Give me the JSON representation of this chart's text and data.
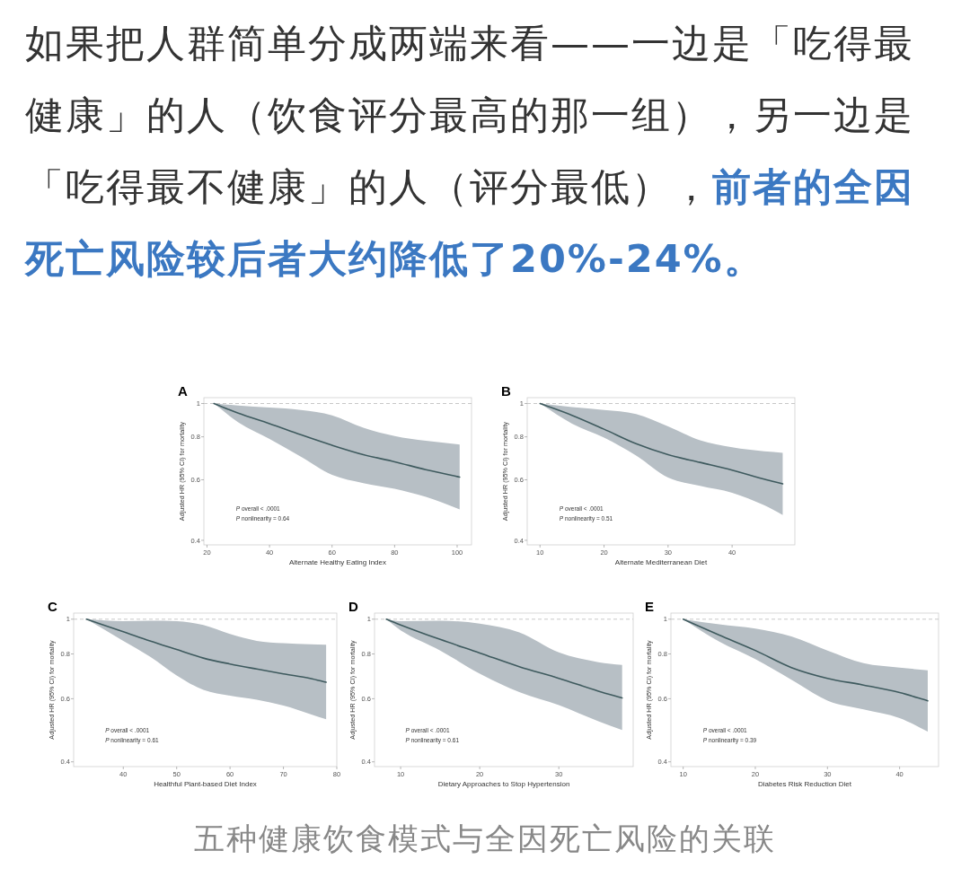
{
  "chart_data": [
    {
      "type": "other",
      "annotations": [
        "如果把人群简单分成两端来看——一边是「吃得最健康」的人（饮食评分最高的那一组），另一边是「吃得最不健康」的人（评分最低），",
        "前者的全因死亡风险较后者大约降低了20%-24%。"
      ]
    },
    {
      "type": "line",
      "title": "A",
      "xlabel": "Alternate Healthy Eating Index",
      "ylabel": "Adjusted HR (95% CI) for mortality",
      "log": "y",
      "xlim": [
        19,
        104.6
      ],
      "xticks": [
        20,
        40,
        60,
        80,
        100
      ],
      "ylim": [
        0.388,
        1.04
      ],
      "yticks": [
        0.4,
        0.6,
        0.8,
        1
      ],
      "ref_lines": [
        {
          "axis": "y",
          "value": 1,
          "color": "#c8c8c8",
          "line_style": "dashed"
        }
      ],
      "annotations": [
        "P overall < .0001",
        "P nonlinearity = 0.64"
      ],
      "series": [
        {
          "color": "#3e5a5e",
          "x": [
            22.2,
            30,
            40,
            50,
            60,
            70,
            80,
            90,
            100.8
          ],
          "values": [
            1,
            0.937,
            0.874,
            0.811,
            0.756,
            0.71,
            0.677,
            0.642,
            0.611
          ],
          "upper": [
            1,
            0.987,
            0.973,
            0.958,
            0.924,
            0.85,
            0.804,
            0.779,
            0.76
          ],
          "lower": [
            1,
            0.882,
            0.789,
            0.7,
            0.62,
            0.587,
            0.565,
            0.535,
            0.492
          ]
        }
      ]
    },
    {
      "type": "line",
      "title": "B",
      "xlabel": "Alternate Mediterranean Diet",
      "ylabel": "Adjusted HR (95% CI) for mortality",
      "log": "y",
      "xlim": [
        8,
        49.8
      ],
      "xticks": [
        10,
        20,
        30,
        40
      ],
      "ylim": [
        0.388,
        1.04
      ],
      "yticks": [
        0.4,
        0.6,
        0.8,
        1
      ],
      "ref_lines": [
        {
          "axis": "y",
          "value": 1,
          "color": "#c8c8c8",
          "line_style": "dashed"
        }
      ],
      "annotations": [
        "P overall < .0001",
        "P nonlinearity = 0.51"
      ],
      "series": [
        {
          "color": "#3e5a5e",
          "x": [
            10,
            15,
            20,
            25,
            30,
            35,
            40,
            45,
            47.9
          ],
          "values": [
            1,
            0.924,
            0.842,
            0.764,
            0.71,
            0.674,
            0.64,
            0.603,
            0.584
          ],
          "upper": [
            1,
            0.976,
            0.958,
            0.932,
            0.858,
            0.782,
            0.746,
            0.726,
            0.719
          ],
          "lower": [
            1,
            0.874,
            0.796,
            0.706,
            0.609,
            0.576,
            0.55,
            0.506,
            0.474
          ]
        }
      ]
    },
    {
      "type": "line",
      "title": "C",
      "xlabel": "Healthful Plant-based Diet Index",
      "ylabel": "Adjusted HR (95% CI) for mortality",
      "log": "y",
      "xlim": [
        30.7,
        80
      ],
      "xticks": [
        40,
        50,
        60,
        70,
        80
      ],
      "ylim": [
        0.388,
        1.04
      ],
      "yticks": [
        0.4,
        0.6,
        0.8,
        1
      ],
      "ref_lines": [
        {
          "axis": "y",
          "value": 1,
          "color": "#c8c8c8",
          "line_style": "dashed"
        }
      ],
      "annotations": [
        "P overall < .0001",
        "P nonlinearity = 0.61"
      ],
      "series": [
        {
          "color": "#3e5a5e",
          "x": [
            33.1,
            40,
            45,
            50,
            55,
            60,
            65,
            70,
            75,
            78
          ],
          "values": [
            1,
            0.923,
            0.87,
            0.823,
            0.779,
            0.75,
            0.726,
            0.704,
            0.684,
            0.667
          ],
          "upper": [
            1,
            0.987,
            0.99,
            0.987,
            0.963,
            0.909,
            0.87,
            0.857,
            0.851,
            0.849
          ],
          "lower": [
            1,
            0.87,
            0.786,
            0.697,
            0.635,
            0.612,
            0.596,
            0.574,
            0.544,
            0.526
          ]
        }
      ]
    },
    {
      "type": "line",
      "title": "D",
      "xlabel": "Dietary Approaches to Stop Hypertension",
      "ylabel": "Adjusted HR (95% CI) for mortality",
      "log": "y",
      "xlim": [
        6.7,
        39.4
      ],
      "xticks": [
        10,
        20,
        30
      ],
      "ylim": [
        0.388,
        1.04
      ],
      "yticks": [
        0.4,
        0.6,
        0.8,
        1
      ],
      "ref_lines": [
        {
          "axis": "y",
          "value": 1,
          "color": "#c8c8c8",
          "line_style": "dashed"
        }
      ],
      "annotations": [
        "P overall < .0001",
        "P nonlinearity = 0.61"
      ],
      "series": [
        {
          "color": "#3e5a5e",
          "x": [
            8.2,
            10,
            15,
            20,
            25,
            30,
            35,
            38
          ],
          "values": [
            1,
            0.964,
            0.878,
            0.805,
            0.737,
            0.684,
            0.63,
            0.603
          ],
          "upper": [
            1,
            0.987,
            0.99,
            0.972,
            0.919,
            0.808,
            0.759,
            0.745
          ],
          "lower": [
            1,
            0.931,
            0.818,
            0.705,
            0.626,
            0.576,
            0.519,
            0.491
          ]
        }
      ]
    },
    {
      "type": "line",
      "title": "E",
      "xlabel": "Diabetes Risk Reduction Diet",
      "ylabel": "Adjusted HR (95% CI) for mortality",
      "log": "y",
      "xlim": [
        8.3,
        45.4
      ],
      "xticks": [
        10,
        20,
        30,
        40
      ],
      "ylim": [
        0.388,
        1.04
      ],
      "yticks": [
        0.4,
        0.6,
        0.8,
        1
      ],
      "ref_lines": [
        {
          "axis": "y",
          "value": 1,
          "color": "#c8c8c8",
          "line_style": "dashed"
        }
      ],
      "annotations": [
        "P overall < .0001",
        "P nonlinearity = 0.39"
      ],
      "series": [
        {
          "color": "#3e5a5e",
          "x": [
            10,
            15,
            20,
            25,
            30,
            35,
            40,
            43.9
          ],
          "values": [
            1,
            0.903,
            0.818,
            0.733,
            0.684,
            0.655,
            0.624,
            0.592
          ],
          "upper": [
            1,
            0.967,
            0.941,
            0.895,
            0.818,
            0.754,
            0.733,
            0.72
          ],
          "lower": [
            1,
            0.866,
            0.774,
            0.678,
            0.593,
            0.56,
            0.53,
            0.486
          ]
        }
      ]
    },
    {
      "type": "other",
      "annotations": [
        "五种健康饮食模式与全因死亡风险的关联"
      ]
    }
  ]
}
